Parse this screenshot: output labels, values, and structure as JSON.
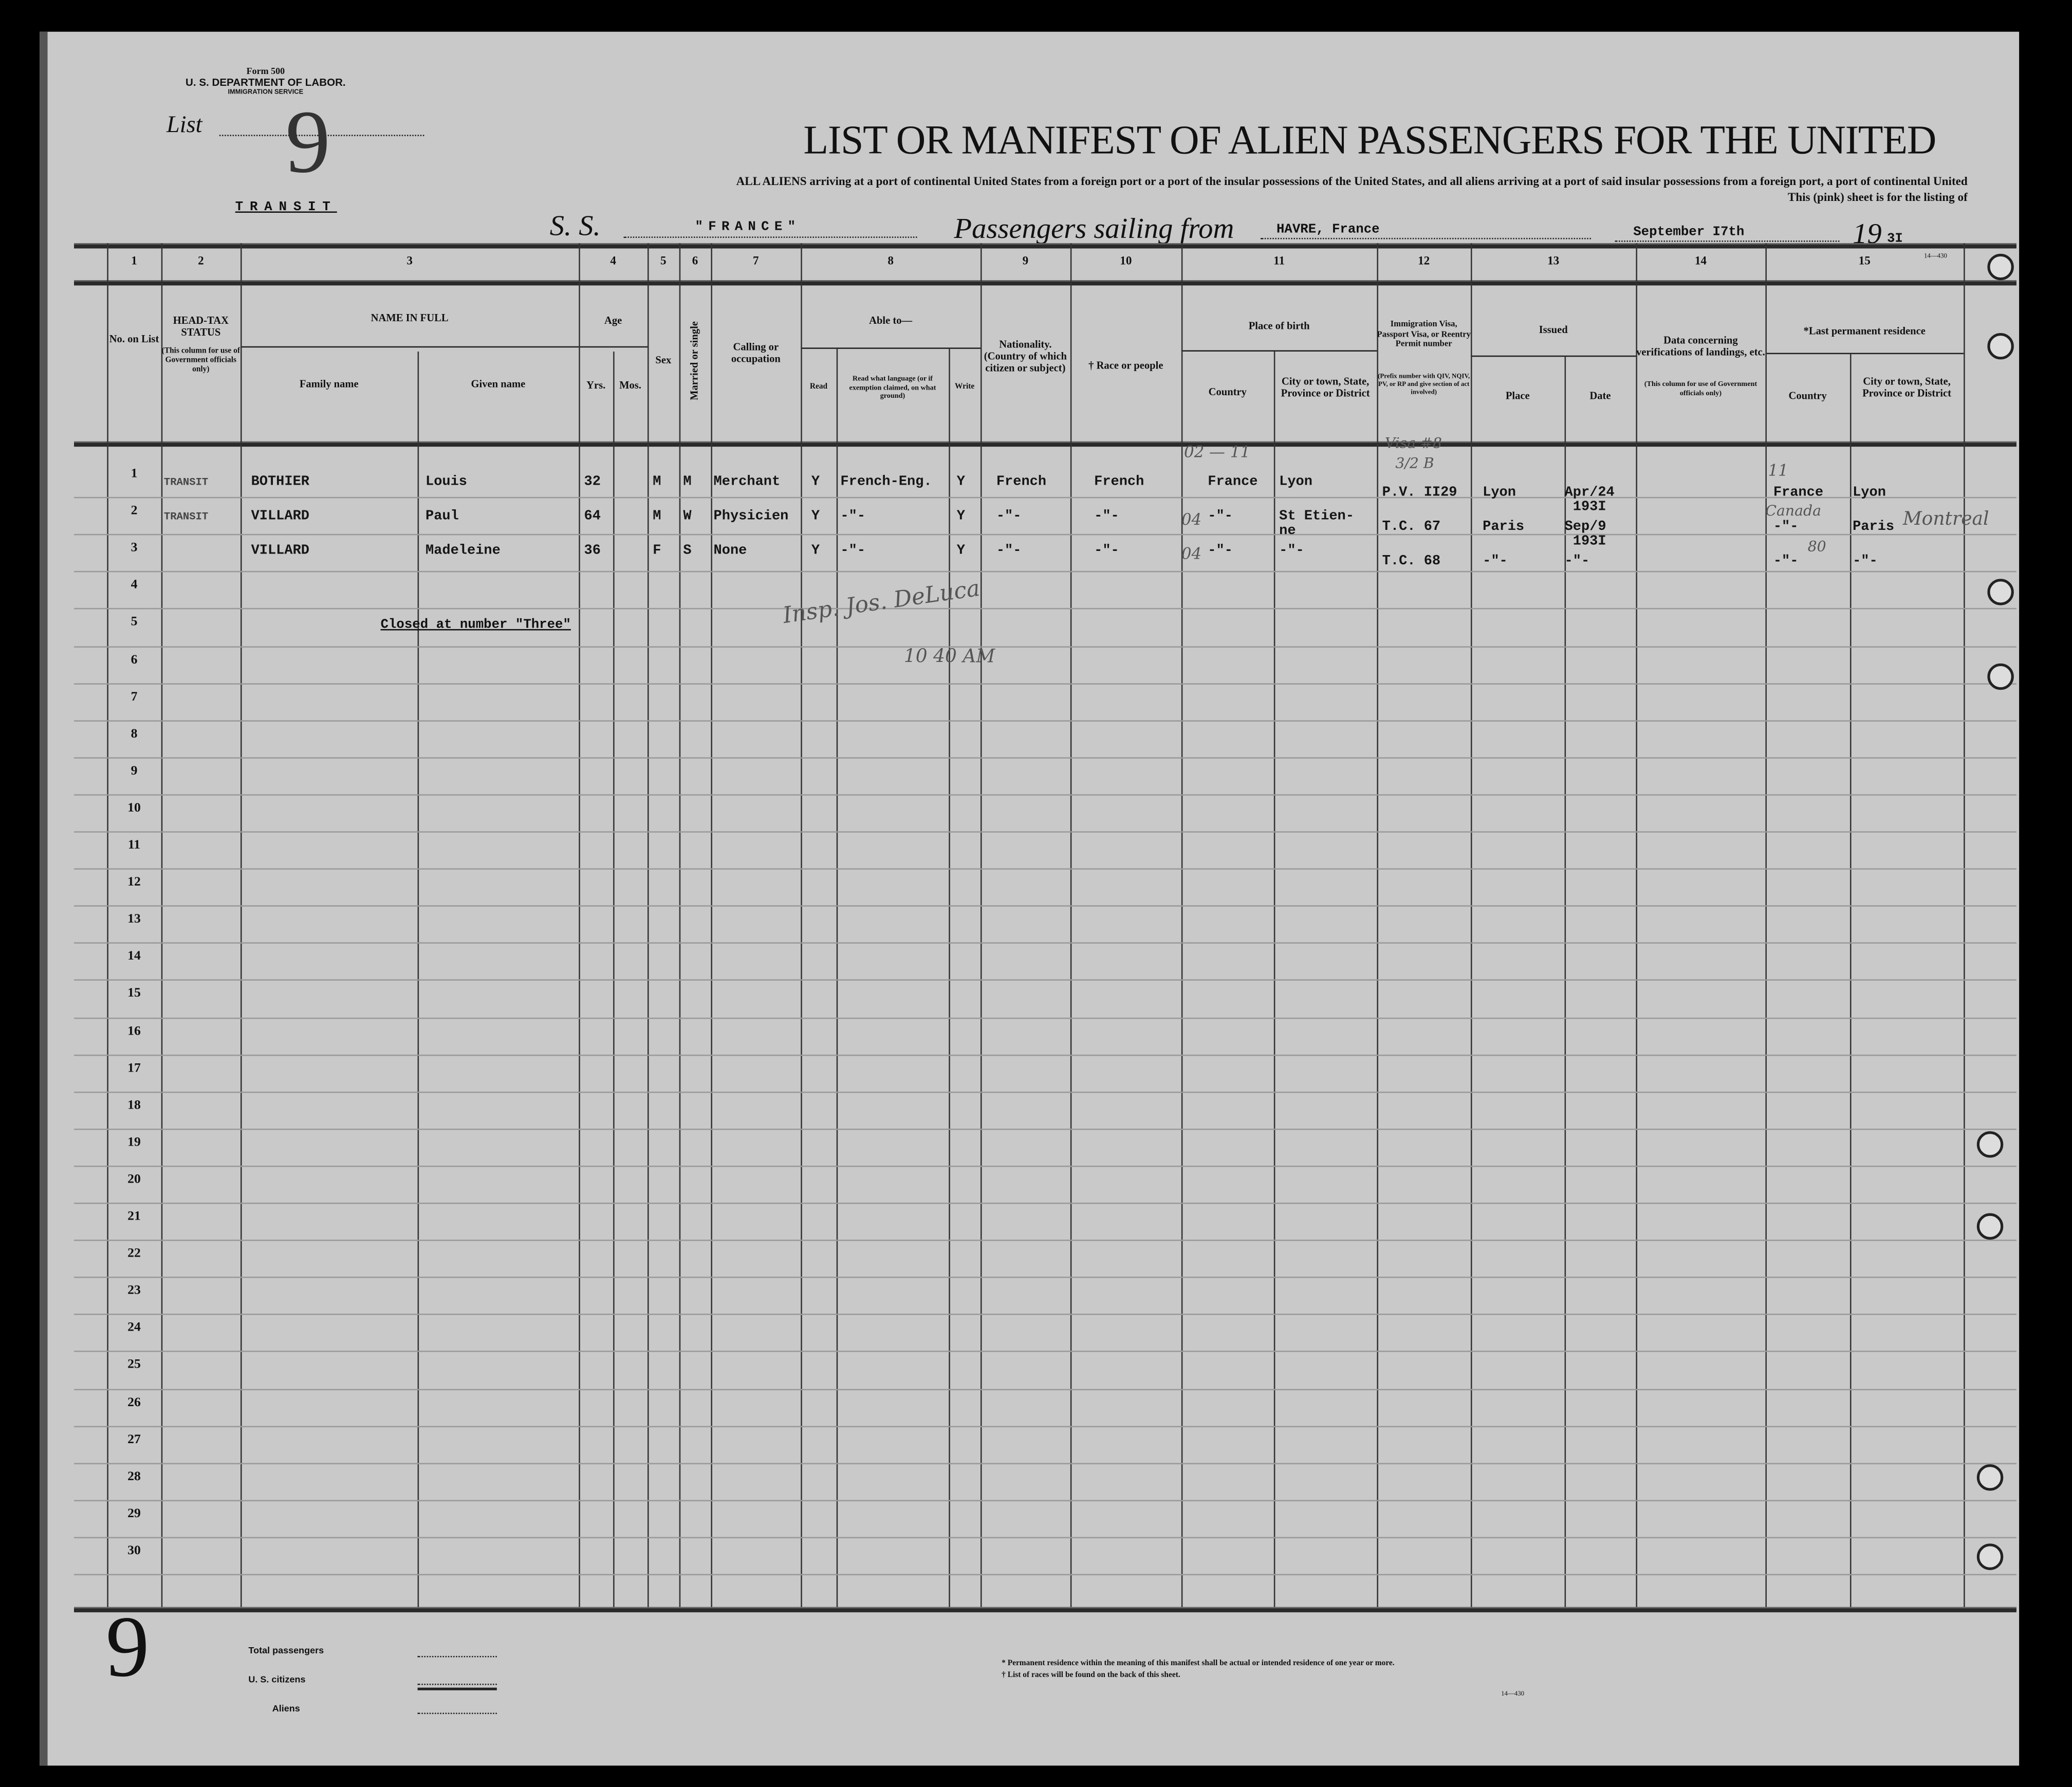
{
  "header": {
    "form_number": "Form 500",
    "department": "U. S. DEPARTMENT OF LABOR.",
    "service": "IMMIGRATION SERVICE",
    "list_label": "List",
    "list_number": "9",
    "transit_stamp": "TRANSIT",
    "title": "LIST OR MANIFEST OF ALIEN PASSENGERS FOR THE UNITED",
    "subtitle_line1": "ALL ALIENS arriving at a port of continental United States from a foreign port or a port of the insular possessions of the United States, and all aliens arriving at a port of said insular possessions from a foreign port, a port of continental United",
    "subtitle_line2": "This (pink) sheet is for the listing of",
    "ss_label": "S. S.",
    "ship_name": "\"FRANCE\"",
    "sailing_label": "Passengers sailing from",
    "port": "HAVRE, France",
    "date": "September I7th",
    "year_prefix": "19",
    "year_suffix": "3I",
    "form_code": "14—430"
  },
  "columns": [
    {
      "num": "1",
      "label": "No. on List"
    },
    {
      "num": "2",
      "label": "HEAD-TAX STATUS",
      "note": "(This column for use of Government officials only)"
    },
    {
      "num": "3",
      "label": "NAME IN FULL",
      "sub": [
        "Family name",
        "Given name"
      ]
    },
    {
      "num": "4",
      "label": "Age",
      "sub": [
        "Yrs.",
        "Mos."
      ]
    },
    {
      "num": "5",
      "label": "Sex"
    },
    {
      "num": "6",
      "label": "Married or single"
    },
    {
      "num": "7",
      "label": "Calling or occupation"
    },
    {
      "num": "8",
      "label": "Able to—",
      "sub": [
        "Read",
        "Read what language (or if exemption claimed, on what ground)",
        "Write"
      ]
    },
    {
      "num": "9",
      "label": "Nationality. (Country of which citizen or subject)"
    },
    {
      "num": "10",
      "label": "† Race or people"
    },
    {
      "num": "11",
      "label": "Place of birth",
      "sub": [
        "Country",
        "City or town, State, Province or District"
      ]
    },
    {
      "num": "12",
      "label": "Immigration Visa, Passport Visa, or Reentry Permit number",
      "note": "(Prefix number with QIV, NQIV, PV, or RP and give section of act involved)"
    },
    {
      "num": "13",
      "label": "Issued",
      "sub": [
        "Place",
        "Date"
      ]
    },
    {
      "num": "14",
      "label": "Data concerning verifications of landings, etc.",
      "note": "(This column for use of Government officials only)"
    },
    {
      "num": "15",
      "label": "*Last permanent residence",
      "sub": [
        "Country",
        "City or town, State, Province or District"
      ]
    }
  ],
  "rows": [
    {
      "no": "1",
      "headtax": "TRANSIT",
      "family": "BOTHIER",
      "given": "Louis",
      "yrs": "32",
      "mos": "",
      "sex": "M",
      "marital": "M",
      "occupation": "Merchant",
      "read": "Y",
      "language": "French-Eng.",
      "write": "Y",
      "nationality": "French",
      "race": "French",
      "birth_country": "France",
      "birth_city": "Lyon",
      "visa": "P.V. II29",
      "issued_place": "Lyon",
      "issued_date": "Apr/24\n 193I",
      "verification": "",
      "res_country": "France",
      "res_city": "Lyon"
    },
    {
      "no": "2",
      "headtax": "TRANSIT",
      "family": "VILLARD",
      "given": "Paul",
      "yrs": "64",
      "mos": "",
      "sex": "M",
      "marital": "W",
      "occupation": "Physicien",
      "read": "Y",
      "language": "-\"-",
      "write": "Y",
      "nationality": "-\"-",
      "race": "-\"-",
      "birth_country": "-\"-",
      "birth_city": "St Etien-\nne",
      "visa": "T.C. 67",
      "issued_place": "Paris",
      "issued_date": "Sep/9\n 193I",
      "verification": "",
      "res_country": "-\"-",
      "res_city": "Paris"
    },
    {
      "no": "3",
      "headtax": "",
      "family": "VILLARD",
      "given": "Madeleine",
      "yrs": "36",
      "mos": "",
      "sex": "F",
      "marital": "S",
      "occupation": "None",
      "read": "Y",
      "language": "-\"-",
      "write": "Y",
      "nationality": "-\"-",
      "race": "-\"-",
      "birth_country": "-\"-",
      "birth_city": "-\"-",
      "visa": "T.C. 68",
      "issued_place": "-\"-",
      "issued_date": "-\"-",
      "verification": "",
      "res_country": "-\"-",
      "res_city": "-\"-"
    }
  ],
  "row_numbers": [
    "1",
    "2",
    "3",
    "4",
    "5",
    "6",
    "7",
    "8",
    "9",
    "10",
    "11",
    "12",
    "13",
    "14",
    "15",
    "16",
    "17",
    "18",
    "19",
    "20",
    "21",
    "22",
    "23",
    "24",
    "25",
    "26",
    "27",
    "28",
    "29",
    "30"
  ],
  "closing_note": "Closed at number \"Three\"",
  "handwritten": {
    "birth_code_1": "02 — 11",
    "birth_code_2": "04",
    "birth_code_3": "04",
    "visa_note": "Visa #8",
    "visa_note2": "3/2 B",
    "residence_country_2": "Canada",
    "residence_city_2": "Montreal",
    "inspector": "Insp. Jos. DeLuca",
    "time": "10 40 AM",
    "residence_mark_1": "11",
    "residence_mark_3": "80"
  },
  "footer": {
    "sheet_number": "9",
    "total_label": "Total passengers",
    "citizens_label": "U. S. citizens",
    "aliens_label": "Aliens",
    "footnote1": "* Permanent residence within the meaning of this manifest shall be actual or intended residence of one year or more.",
    "footnote2": "† List of races will be found on the back of this sheet.",
    "form_code": "14—430"
  }
}
